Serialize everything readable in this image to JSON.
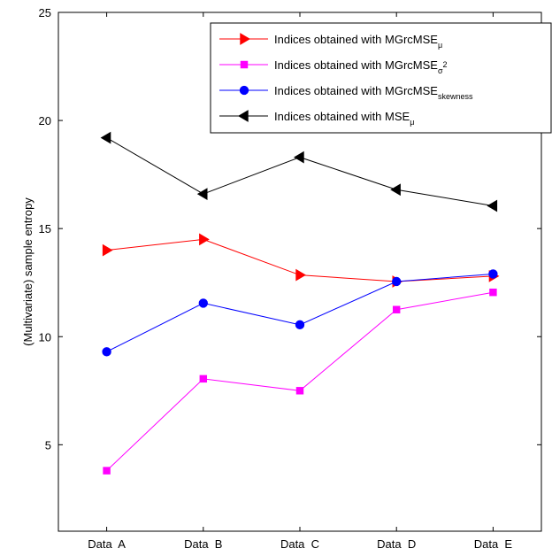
{
  "chart_data": {
    "type": "line",
    "title": "",
    "xlabel": "",
    "ylabel": "(Multivariate) sample entropy",
    "categories": [
      "Data  A",
      "Data  B",
      "Data  C",
      "Data  D",
      "Data  E"
    ],
    "ylim": [
      1,
      25
    ],
    "yticks": [
      5,
      10,
      15,
      20,
      25
    ],
    "grid": false,
    "legend_position": "top-right",
    "series": [
      {
        "legend_main": "Indices obtained with MGrcMSE",
        "legend_sub": "μ",
        "legend_sup": "",
        "marker": "triangle-right",
        "color": "#ff0000",
        "values": [
          14.0,
          14.5,
          12.85,
          12.55,
          12.8
        ]
      },
      {
        "legend_main": "Indices obtained with MGrcMSE",
        "legend_sub": "σ",
        "legend_sup": "2",
        "marker": "square",
        "color": "#ff00ff",
        "values": [
          3.8,
          8.05,
          7.5,
          11.25,
          12.05
        ]
      },
      {
        "legend_main": "Indices obtained with MGrcMSE",
        "legend_sub": "skewness",
        "legend_sup": "",
        "marker": "circle",
        "color": "#0000ff",
        "values": [
          9.3,
          11.55,
          10.55,
          12.55,
          12.9
        ]
      },
      {
        "legend_main": "Indices obtained with MSE",
        "legend_sub": "μ",
        "legend_sup": "",
        "marker": "triangle-left",
        "color": "#000000",
        "values": [
          19.2,
          16.6,
          18.3,
          16.8,
          16.05
        ]
      }
    ]
  }
}
